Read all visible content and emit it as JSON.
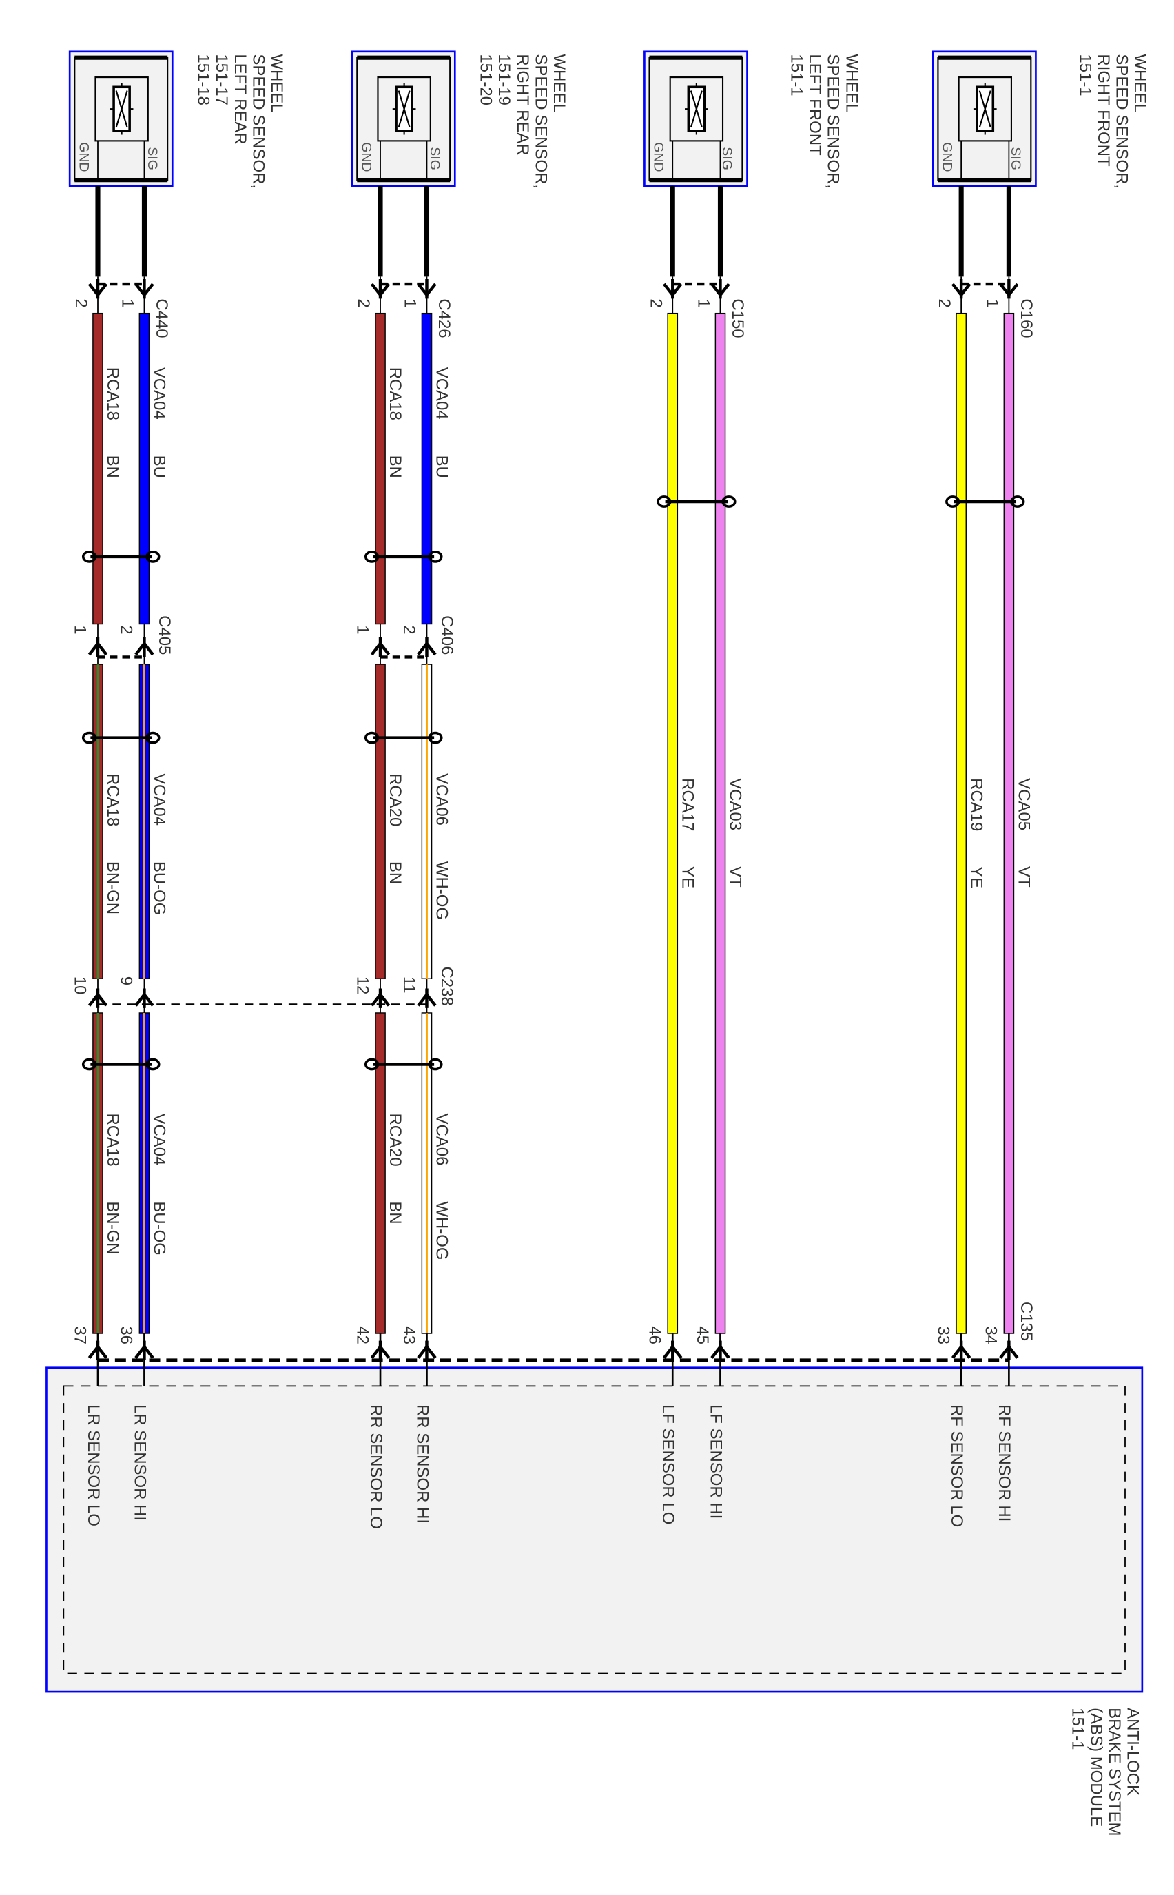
{
  "colors": {
    "BN": "#a52a2a",
    "BU": "#0000ff",
    "GN": "#2e8b2e",
    "OG": "#ffa500",
    "WH": "#ffffff",
    "YE": "#ffff00",
    "VT": "#ee82ee",
    "component_border": "#0000ff",
    "component_fill": "#f2f2f2"
  },
  "sensors": [
    {
      "lines": [
        "WHEEL",
        "SPEED SENSOR,",
        "LEFT REAR",
        "151-17",
        "151-18"
      ],
      "gnd": "GND",
      "sig": "SIG",
      "icon": "sensor-element-icon"
    },
    {
      "lines": [
        "WHEEL",
        "SPEED SENSOR,",
        "RIGHT REAR",
        "151-19",
        "151-20"
      ],
      "gnd": "GND",
      "sig": "SIG",
      "icon": "sensor-element-icon"
    },
    {
      "lines": [
        "WHEEL",
        "SPEED SENSOR,",
        "LEFT FRONT",
        "151-1"
      ],
      "gnd": "GND",
      "sig": "SIG",
      "icon": "sensor-element-icon"
    },
    {
      "lines": [
        "WHEEL",
        "SPEED SENSOR,",
        "RIGHT FRONT",
        "151-1"
      ],
      "gnd": "GND",
      "sig": "SIG",
      "icon": "sensor-element-icon"
    }
  ],
  "columns": [
    {
      "top_connector": {
        "name": "C440",
        "pins": [
          "2",
          "1"
        ]
      },
      "segments": [
        {
          "wires": [
            {
              "circuit": "RCA18",
              "color": "BN"
            },
            {
              "circuit": "VCA04",
              "color": "BU"
            }
          ]
        },
        {
          "wires": [
            {
              "circuit": "RCA18",
              "color": "BN-GN"
            },
            {
              "circuit": "VCA04",
              "color": "BU-OG"
            }
          ]
        },
        {
          "wires": [
            {
              "circuit": "RCA18",
              "color": "BN-GN"
            },
            {
              "circuit": "VCA04",
              "color": "BU-OG"
            }
          ]
        }
      ],
      "inline_connectors": [
        {
          "name": "C405",
          "pins": [
            "1",
            "2"
          ]
        },
        {
          "name": "",
          "pins": [
            "10",
            "9"
          ]
        }
      ],
      "module_pins": [
        "37",
        "36"
      ],
      "module_labels": [
        "LR SENSOR LO",
        "LR SENSOR HI"
      ]
    },
    {
      "top_connector": {
        "name": "C426",
        "pins": [
          "2",
          "1"
        ]
      },
      "segments": [
        {
          "wires": [
            {
              "circuit": "RCA18",
              "color": "BN"
            },
            {
              "circuit": "VCA04",
              "color": "BU"
            }
          ]
        },
        {
          "wires": [
            {
              "circuit": "RCA20",
              "color": "BN"
            },
            {
              "circuit": "VCA06",
              "color": "WH-OG"
            }
          ]
        },
        {
          "wires": [
            {
              "circuit": "RCA20",
              "color": "BN"
            },
            {
              "circuit": "VCA06",
              "color": "WH-OG"
            }
          ]
        }
      ],
      "inline_connectors": [
        {
          "name": "C406",
          "pins": [
            "1",
            "2"
          ]
        },
        {
          "name": "C238",
          "pins": [
            "12",
            "11"
          ]
        }
      ],
      "module_pins": [
        "42",
        "43"
      ],
      "module_labels": [
        "RR SENSOR LO",
        "RR SENSOR HI"
      ]
    },
    {
      "top_connector": {
        "name": "C150",
        "pins": [
          "2",
          "1"
        ]
      },
      "segments": [
        {
          "wires": [
            {
              "circuit": "RCA17",
              "color": "YE"
            },
            {
              "circuit": "VCA03",
              "color": "VT"
            }
          ]
        }
      ],
      "inline_connectors": [],
      "module_pins": [
        "46",
        "45"
      ],
      "module_labels": [
        "LF SENSOR LO",
        "LF SENSOR HI"
      ]
    },
    {
      "top_connector": {
        "name": "C160",
        "pins": [
          "2",
          "1"
        ]
      },
      "segments": [
        {
          "wires": [
            {
              "circuit": "RCA19",
              "color": "YE"
            },
            {
              "circuit": "VCA05",
              "color": "VT"
            }
          ]
        }
      ],
      "inline_connectors": [],
      "module_pins": [
        "33",
        "34"
      ],
      "module_labels": [
        "RF SENSOR LO",
        "RF SENSOR HI"
      ]
    }
  ],
  "module": {
    "connector": "C135",
    "lines": [
      "ANTI-LOCK",
      "BRAKE SYSTEM",
      "(ABS) MODULE",
      "151-1"
    ]
  }
}
